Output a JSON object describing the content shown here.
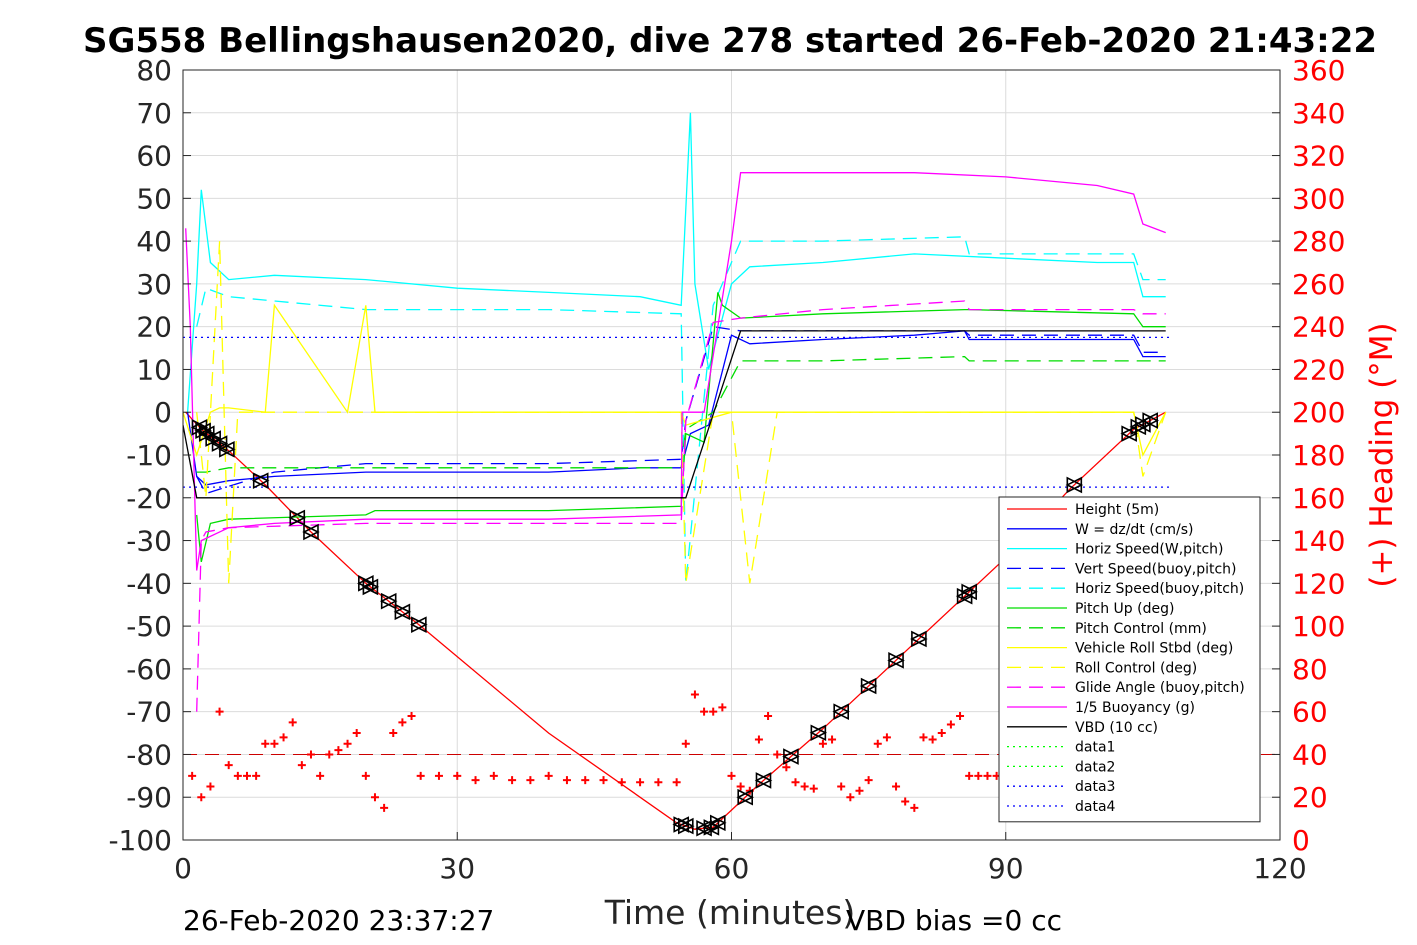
{
  "chart_data": {
    "type": "line",
    "title": "SG558 Bellingshausen2020, dive 278 started 26-Feb-2020 21:43:22",
    "xlabel": "Time (minutes)",
    "ylabel_right": "(+) Heading (°M)",
    "xlim": [
      0,
      120
    ],
    "ylim": [
      -100,
      80
    ],
    "ylim_right": [
      0,
      360
    ],
    "x_ticks": [
      "0",
      "30",
      "60",
      "90",
      "120"
    ],
    "y_ticks": [
      "80",
      "70",
      "60",
      "50",
      "40",
      "30",
      "20",
      "10",
      "0",
      "-10",
      "-20",
      "-30",
      "-40",
      "-50",
      "-60",
      "-70",
      "-80",
      "-90",
      "-100"
    ],
    "y_ticks_right": [
      "360",
      "340",
      "320",
      "300",
      "280",
      "260",
      "240",
      "220",
      "200",
      "180",
      "160",
      "140",
      "120",
      "100",
      "80",
      "60",
      "40",
      "20",
      "0"
    ],
    "grid": true,
    "legend_position": "right-middle",
    "footer_left": "26-Feb-2020 23:37:27",
    "footer_right": "VBD bias =0 cc",
    "series": [
      {
        "name": "Height (5m)",
        "color": "#ff0000",
        "style": "solid",
        "x": [
          0.3,
          2,
          5,
          9,
          14,
          20,
          26,
          40,
          54,
          56,
          58,
          60,
          63,
          70,
          80,
          90,
          97,
          104,
          107.5
        ],
        "y": [
          0,
          -4,
          -9,
          -17,
          -28,
          -40,
          -50,
          -75,
          -96,
          -97.5,
          -97,
          -93,
          -87,
          -74,
          -54,
          -34,
          -18,
          -4,
          0
        ]
      },
      {
        "name": "W = dz/dt (cm/s)",
        "color": "#0000ff",
        "style": "solid",
        "x": [
          0.5,
          1.5,
          2.5,
          5,
          10,
          20,
          30,
          40,
          50,
          54.5,
          55.5,
          57.5,
          60,
          62,
          70,
          80,
          85.5,
          86,
          95,
          104,
          105,
          107.5
        ],
        "y": [
          0,
          -15,
          -17,
          -16,
          -15,
          -14,
          -14,
          -14,
          -13,
          -13,
          -5,
          -3,
          18,
          16,
          17,
          18,
          19,
          17,
          17,
          17,
          13,
          13
        ]
      },
      {
        "name": "Horiz Speed(W,pitch)",
        "color": "#00ffff",
        "style": "solid",
        "x": [
          0.5,
          1.5,
          2,
          3,
          5,
          10,
          20,
          30,
          40,
          50,
          54.5,
          55.5,
          56,
          57.5,
          60,
          62,
          70,
          80,
          90,
          100,
          104,
          105,
          107.5
        ],
        "y": [
          0,
          30,
          52,
          35,
          31,
          32,
          31,
          29,
          28,
          27,
          25,
          70,
          30,
          10,
          30,
          34,
          35,
          37,
          36,
          35,
          35,
          27,
          27
        ]
      },
      {
        "name": "Vert Speed(buoy,pitch)",
        "color": "#0000ff",
        "style": "dashed",
        "x": [
          1.5,
          2.5,
          10,
          20,
          30,
          40,
          54.5,
          55,
          58,
          61,
          70,
          85.5,
          86,
          104,
          105,
          107.5
        ],
        "y": [
          -15,
          -19,
          -14,
          -12,
          -12,
          -12,
          -11,
          -2,
          20,
          19,
          19,
          19,
          18,
          18,
          14,
          14
        ]
      },
      {
        "name": "Horiz Speed(buoy,pitch)",
        "color": "#00ffff",
        "style": "dashed",
        "x": [
          1.5,
          2.5,
          5,
          20,
          30,
          40,
          54.5,
          55,
          58,
          61,
          70,
          85.5,
          86,
          104,
          105,
          107.5
        ],
        "y": [
          20,
          29,
          27,
          24,
          24,
          24,
          23,
          -40,
          25,
          40,
          40,
          41,
          37,
          37,
          31,
          31
        ]
      },
      {
        "name": "Pitch Up (deg)",
        "color": "#00dd00",
        "style": "solid",
        "x": [
          1.5,
          2,
          3,
          5,
          20,
          21,
          30,
          40,
          54.5,
          55,
          57,
          58.5,
          59,
          61,
          70,
          85.5,
          86,
          104,
          105,
          107.5
        ],
        "y": [
          -24,
          -35,
          -26,
          -25,
          -24,
          -23,
          -23,
          -23,
          -22,
          -5,
          -7,
          28,
          25,
          22,
          23,
          24,
          24,
          23,
          20,
          20
        ]
      },
      {
        "name": "Pitch Control (mm)",
        "color": "#00dd00",
        "style": "dashed",
        "x": [
          1.5,
          2.5,
          5,
          20,
          30,
          40,
          54.5,
          55,
          58,
          61,
          70,
          85.5,
          86,
          104,
          105,
          107.5
        ],
        "y": [
          -14,
          -14,
          -13,
          -13,
          -13,
          -13,
          -13,
          -4,
          0,
          12,
          12,
          13,
          12,
          12,
          12,
          12
        ]
      },
      {
        "name": "Vehicle Roll Stbd (deg)",
        "color": "#ffff00",
        "style": "solid",
        "x": [
          0,
          1.5,
          3,
          4,
          5,
          9,
          10,
          18,
          20,
          21,
          30,
          40,
          54.5,
          55,
          60,
          63,
          70,
          80,
          90,
          100,
          104,
          105,
          107.5
        ],
        "y": [
          0,
          -10,
          0,
          1,
          1,
          0,
          25,
          0,
          25,
          0,
          0,
          0,
          0,
          -3,
          0,
          0,
          0,
          0,
          0,
          0,
          0,
          -10,
          0
        ]
      },
      {
        "name": "Roll Control (deg)",
        "color": "#ffff00",
        "style": "dashed",
        "x": [
          1.5,
          2.5,
          4,
          5,
          6,
          10,
          20,
          30,
          40,
          54.5,
          55,
          58,
          60,
          62,
          65,
          70,
          80,
          90,
          100,
          104,
          105,
          107.5
        ],
        "y": [
          0,
          -20,
          40,
          -40,
          0,
          0,
          0,
          0,
          0,
          0,
          -40,
          0,
          0,
          -40,
          0,
          0,
          0,
          0,
          0,
          0,
          -15,
          0
        ]
      },
      {
        "name": "Glide Angle (buoy,pitch)",
        "color": "#ff00ff",
        "style": "dashed",
        "x": [
          1.5,
          2,
          2.5,
          5,
          20,
          30,
          40,
          54.5,
          55,
          58,
          61,
          70,
          85.5,
          86,
          104,
          105,
          107.5
        ],
        "y": [
          -70,
          -30,
          -28,
          -27,
          -26,
          -26,
          -26,
          -26,
          -2,
          21,
          22,
          24,
          26,
          24,
          24,
          23,
          23
        ]
      },
      {
        "name": "1/5 Buoyancy (g)",
        "color": "#ff00ff",
        "style": "solid",
        "x": [
          0.3,
          0.8,
          1.5,
          2,
          5,
          10,
          20,
          30,
          40,
          54.5,
          54.6,
          57,
          60,
          61,
          70,
          80,
          90,
          100,
          104,
          105,
          107.5
        ],
        "y": [
          43,
          20,
          -37,
          -30,
          -27,
          -26,
          -25,
          -25,
          -25,
          -24,
          0,
          0,
          40,
          56,
          56,
          56,
          55,
          53,
          51,
          44,
          42
        ]
      },
      {
        "name": "VBD (10 cc)",
        "color": "#000000",
        "style": "solid",
        "x": [
          0,
          1.5,
          2.5,
          54.5,
          55,
          61,
          107.5
        ],
        "y": [
          -3,
          -20,
          -20,
          -20,
          -20,
          19,
          19
        ]
      },
      {
        "name": "data1",
        "color": "#00ff00",
        "style": "dotted",
        "x": [],
        "y": []
      },
      {
        "name": "data2",
        "color": "#00ff00",
        "style": "dotted",
        "x": [],
        "y": []
      },
      {
        "name": "data3",
        "color": "#0000ff",
        "style": "dotted",
        "x": [
          0,
          108
        ],
        "y": [
          17.5,
          17.5
        ]
      },
      {
        "name": "data4",
        "color": "#0000ff",
        "style": "dotted",
        "x": [
          0,
          108
        ],
        "y": [
          -17.5,
          -17.5
        ]
      }
    ],
    "heading_series": {
      "color": "#ff0000",
      "marker": "+",
      "reference_heading": 40,
      "x": [
        1,
        2,
        3,
        4,
        5,
        6,
        7,
        8,
        9,
        10,
        11,
        12,
        13,
        14,
        15,
        16,
        17,
        18,
        19,
        20,
        21,
        22,
        23,
        24,
        25,
        26,
        28,
        30,
        32,
        34,
        36,
        38,
        40,
        42,
        44,
        46,
        48,
        50,
        52,
        54,
        55,
        56,
        57,
        58,
        59,
        60,
        61,
        62,
        63,
        64,
        65,
        66,
        67,
        68,
        69,
        70,
        71,
        72,
        73,
        74,
        75,
        76,
        77,
        78,
        79,
        80,
        81,
        82,
        83,
        84,
        85,
        86,
        87,
        88,
        89,
        90
      ],
      "y": [
        30,
        20,
        25,
        60,
        35,
        30,
        30,
        30,
        45,
        45,
        48,
        55,
        35,
        40,
        30,
        40,
        42,
        45,
        50,
        30,
        20,
        15,
        50,
        55,
        58,
        30,
        30,
        30,
        28,
        30,
        28,
        28,
        30,
        28,
        28,
        28,
        27,
        27,
        27,
        27,
        45,
        68,
        60,
        60,
        62,
        30,
        25,
        23,
        47,
        58,
        40,
        34,
        27,
        25,
        24,
        45,
        47,
        25,
        20,
        23,
        28,
        45,
        48,
        25,
        18,
        15,
        48,
        47,
        50,
        54,
        58,
        30,
        30,
        30,
        30,
        32
      ]
    },
    "marker_points": {
      "color": "#000000",
      "marker": "triangles",
      "x": [
        1.8,
        2.2,
        2.6,
        3.3,
        4.0,
        4.8,
        8.5,
        12.5,
        14.0,
        20.0,
        20.5,
        22.5,
        24.0,
        25.8,
        54.5,
        55.0,
        57.0,
        57.8,
        58.5,
        61.5,
        63.5,
        66.5,
        69.5,
        72.0,
        75.0,
        78.0,
        80.5,
        85.5,
        86.0,
        97.5,
        103.5,
        104.5,
        105.0,
        105.8
      ]
    }
  }
}
